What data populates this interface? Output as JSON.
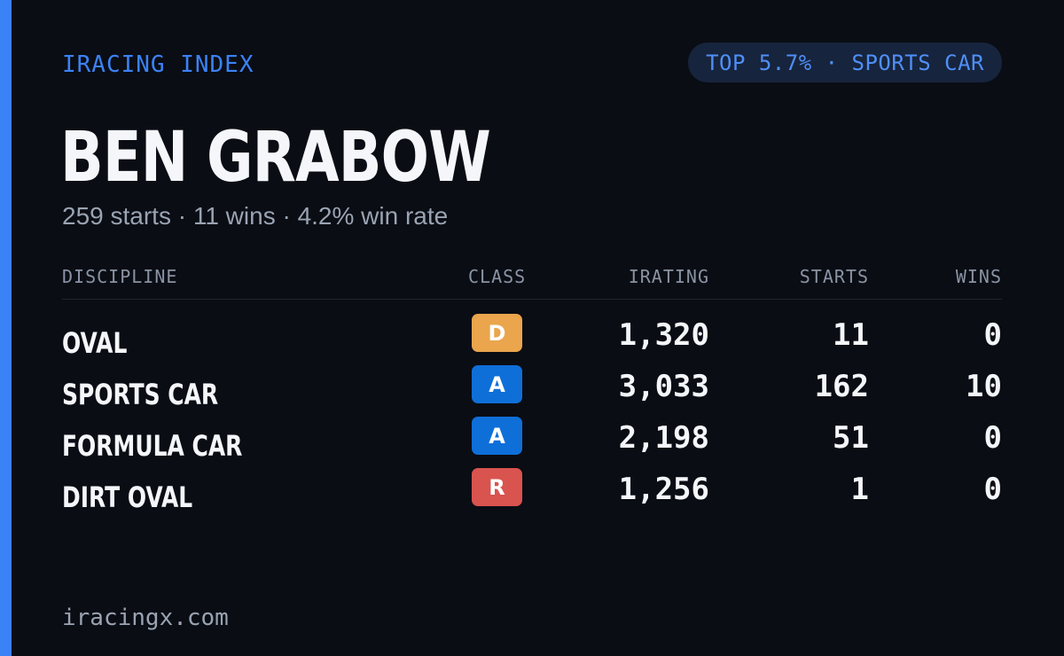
{
  "brand": "IRACING INDEX",
  "rank_badge": "TOP 5.7% · SPORTS CAR",
  "driver": {
    "name": "BEN GRABOW",
    "summary": "259 starts · 11 wins · 4.2% win rate"
  },
  "table": {
    "headers": {
      "discipline": "DISCIPLINE",
      "class": "CLASS",
      "irating": "IRATING",
      "starts": "STARTS",
      "wins": "WINS"
    },
    "rows": [
      {
        "discipline": "OVAL",
        "class": "D",
        "class_color": "#eaa54d",
        "irating": "1,320",
        "starts": "11",
        "wins": "0"
      },
      {
        "discipline": "SPORTS CAR",
        "class": "A",
        "class_color": "#0f6fd8",
        "irating": "3,033",
        "starts": "162",
        "wins": "10"
      },
      {
        "discipline": "FORMULA CAR",
        "class": "A",
        "class_color": "#0f6fd8",
        "irating": "2,198",
        "starts": "51",
        "wins": "0"
      },
      {
        "discipline": "DIRT OVAL",
        "class": "R",
        "class_color": "#d9534f",
        "irating": "1,256",
        "starts": "1",
        "wins": "0"
      }
    ]
  },
  "footer": "iracingx.com",
  "colors": {
    "accent": "#3b82f6",
    "background": "#0a0d14"
  }
}
